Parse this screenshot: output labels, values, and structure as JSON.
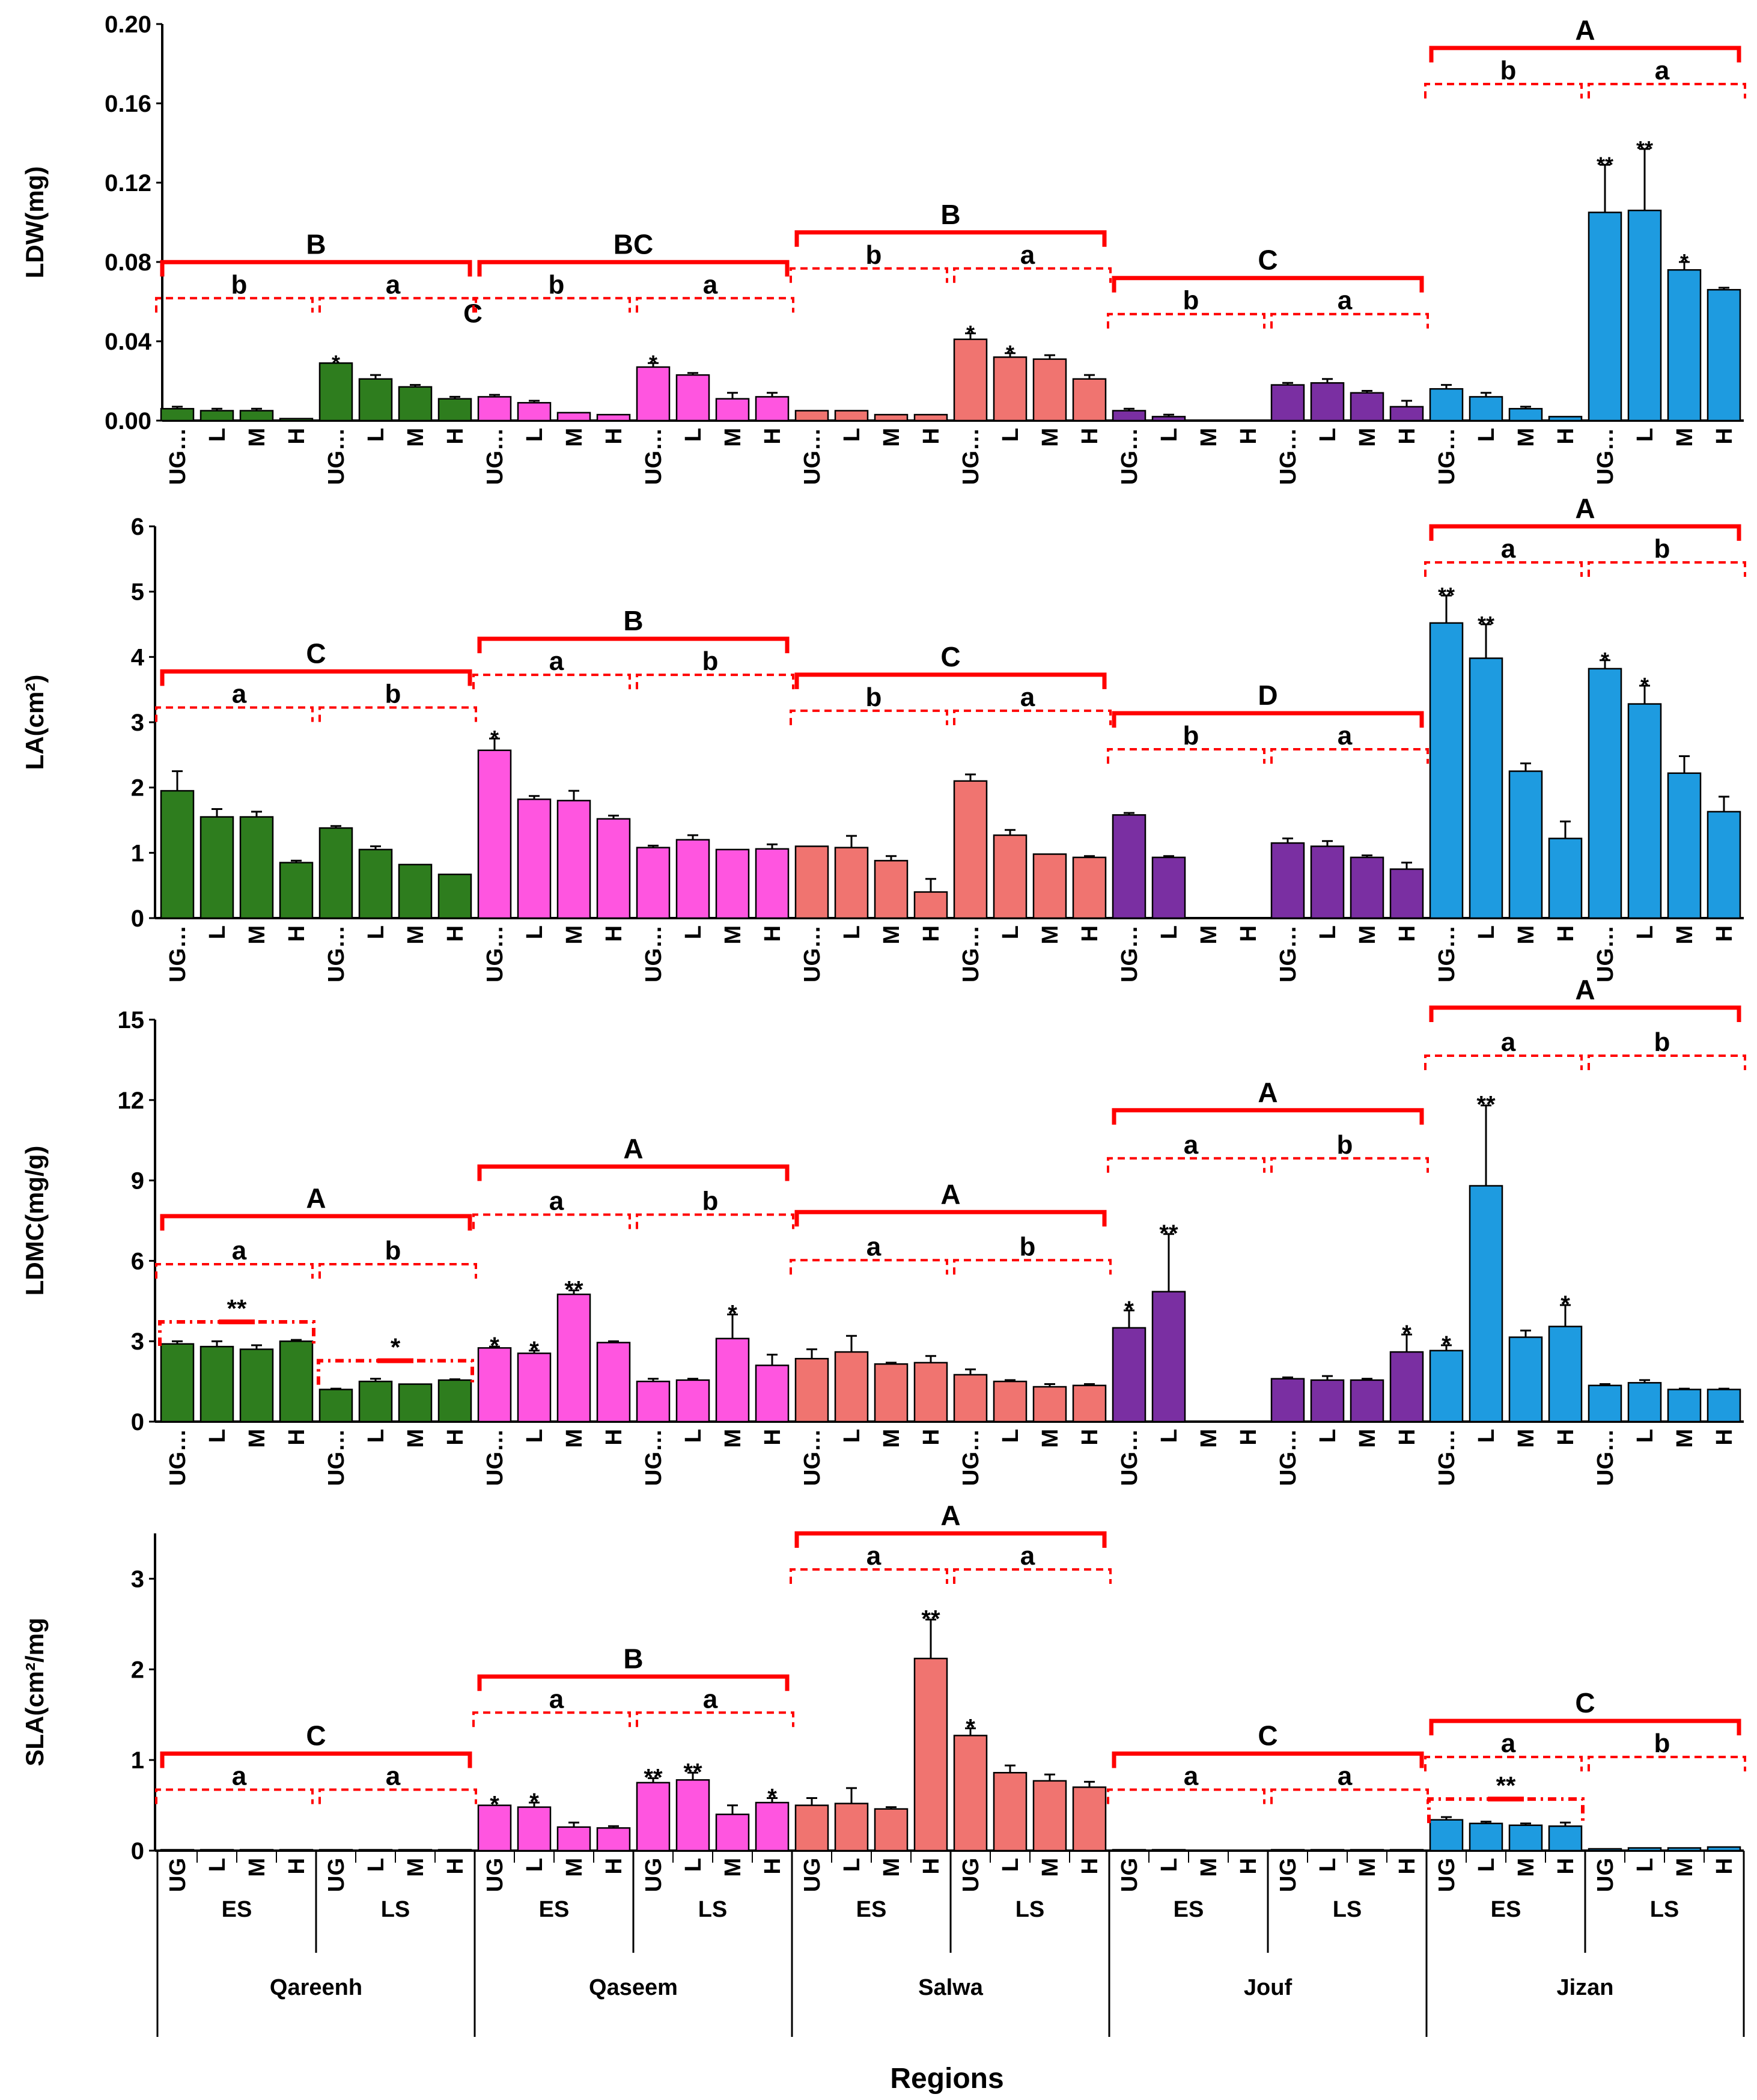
{
  "colors": {
    "Qareenh": "#2e7d1e",
    "Qaseem": "#ff55e0",
    "Salwa": "#f07470",
    "Jouf": "#7a2fa2",
    "Jizan": "#1e9be0",
    "bracket": "#ff0000",
    "axis": "#000000"
  },
  "x_axis": {
    "title": "Regions",
    "regions": [
      "Qareenh",
      "Qaseem",
      "Salwa",
      "Jouf",
      "Jizan"
    ],
    "seasons": [
      "ES",
      "LS"
    ],
    "levels_full": [
      "UG",
      "L",
      "M",
      "H"
    ],
    "levels_trunc": [
      "UG…",
      "L",
      "M",
      "H"
    ]
  },
  "chart_data": [
    {
      "type": "bar",
      "ylabel": "LDW(mg)",
      "ylim": [
        0,
        0.2
      ],
      "yticks": [
        "0.00",
        "0.04",
        "0.08",
        "0.12",
        "0.16",
        "0.20"
      ],
      "values": [
        0.006,
        0.005,
        0.005,
        0.001,
        0.029,
        0.021,
        0.017,
        0.011,
        0.012,
        0.009,
        0.004,
        0.003,
        0.027,
        0.023,
        0.011,
        0.012,
        0.005,
        0.005,
        0.003,
        0.003,
        0.041,
        0.032,
        0.031,
        0.021,
        0.005,
        0.002,
        0,
        0,
        0.018,
        0.019,
        0.014,
        0.007,
        0.016,
        0.012,
        0.006,
        0.002,
        0.105,
        0.106,
        0.076,
        0.066
      ],
      "errors": [
        0.001,
        0.001,
        0.001,
        0,
        0,
        0.002,
        0.001,
        0.001,
        0.001,
        0.001,
        0,
        0,
        0.002,
        0.001,
        0.003,
        0.002,
        0,
        0,
        0,
        0,
        0.003,
        0.002,
        0.002,
        0.002,
        0.001,
        0.001,
        0,
        0,
        0.001,
        0.002,
        0.001,
        0.003,
        0.002,
        0.002,
        0.001,
        0,
        0.024,
        0.031,
        0.004,
        0.001
      ],
      "stars": {
        "4": "*",
        "12": "*",
        "20": "*",
        "21": "*",
        "36": "**",
        "37": "**",
        "38": "*"
      },
      "region_letters": [
        "B",
        "BC",
        "B",
        "C",
        "A"
      ],
      "season_letters": [
        [
          "b",
          "a"
        ],
        [
          "b",
          "a"
        ],
        [
          "b",
          "a"
        ],
        [
          "b",
          "a"
        ],
        [
          "b",
          "a"
        ]
      ],
      "extra_letters": [
        {
          "text": "C",
          "bar": 7
        }
      ]
    },
    {
      "type": "bar",
      "ylabel": "LA(cm²)",
      "ylim": [
        0,
        6
      ],
      "yticks": [
        "0",
        "1",
        "2",
        "3",
        "4",
        "5",
        "6"
      ],
      "values": [
        1.95,
        1.55,
        1.55,
        0.85,
        1.38,
        1.05,
        0.82,
        0.67,
        2.57,
        1.82,
        1.8,
        1.52,
        1.08,
        1.2,
        1.05,
        1.06,
        1.1,
        1.08,
        0.88,
        0.4,
        2.1,
        1.27,
        0.98,
        0.93,
        1.58,
        0.93,
        0,
        0,
        1.15,
        1.1,
        0.93,
        0.75,
        4.52,
        3.98,
        2.25,
        1.22,
        3.82,
        3.28,
        2.22,
        1.63
      ],
      "errors": [
        0.3,
        0.12,
        0.08,
        0.03,
        0.03,
        0.05,
        0,
        0,
        0.18,
        0.05,
        0.15,
        0.05,
        0.03,
        0.07,
        0,
        0.07,
        0,
        0.18,
        0.07,
        0.2,
        0.1,
        0.08,
        0,
        0.02,
        0.03,
        0.02,
        0,
        0,
        0.07,
        0.08,
        0.03,
        0.1,
        0.42,
        0.52,
        0.12,
        0.26,
        0.13,
        0.28,
        0.26,
        0.23
      ],
      "stars": {
        "8": "*",
        "32": "**",
        "33": "**",
        "36": "*",
        "37": "*"
      },
      "region_letters": [
        "C",
        "B",
        "C",
        "D",
        "A"
      ],
      "season_letters": [
        [
          "a",
          "b"
        ],
        [
          "a",
          "b"
        ],
        [
          "b",
          "a"
        ],
        [
          "b",
          "a"
        ],
        [
          "a",
          "b"
        ]
      ],
      "extra_letters": []
    },
    {
      "type": "bar",
      "ylabel": "LDMC(mg/g)",
      "ylim": [
        0,
        15
      ],
      "yticks": [
        "0",
        "3",
        "6",
        "9",
        "12",
        "15"
      ],
      "values": [
        2.9,
        2.8,
        2.7,
        3.0,
        1.2,
        1.5,
        1.4,
        1.55,
        2.75,
        2.55,
        4.75,
        2.95,
        1.5,
        1.55,
        3.1,
        2.1,
        2.35,
        2.6,
        2.15,
        2.2,
        1.75,
        1.5,
        1.3,
        1.35,
        3.5,
        4.85,
        0,
        0,
        1.6,
        1.55,
        1.55,
        2.6,
        2.65,
        8.8,
        3.15,
        3.55,
        1.35,
        1.45,
        1.2,
        1.2
      ],
      "errors": [
        0.1,
        0.2,
        0.15,
        0.05,
        0.03,
        0.1,
        0,
        0.03,
        0.05,
        0.1,
        0.15,
        0.05,
        0.1,
        0.05,
        0.9,
        0.4,
        0.35,
        0.6,
        0.05,
        0.25,
        0.2,
        0.05,
        0.1,
        0.05,
        0.65,
        2.15,
        0,
        0,
        0.05,
        0.15,
        0.05,
        0.65,
        0.2,
        3.0,
        0.25,
        0.8,
        0.05,
        0.1,
        0.03,
        0.03
      ],
      "stars": {
        "8": "*",
        "9": "*",
        "10": "**",
        "14": "*",
        "24": "*",
        "25": "**",
        "31": "*",
        "32": "*",
        "33": "**",
        "35": "*"
      },
      "region_letters": [
        "A",
        "A",
        "A",
        "A",
        "A"
      ],
      "season_letters": [
        [
          "a",
          "b"
        ],
        [
          "a",
          "b"
        ],
        [
          "a",
          "b"
        ],
        [
          "a",
          "b"
        ],
        [
          "a",
          "b"
        ]
      ],
      "extra_letters": [],
      "sub_brackets": [
        {
          "region": 0,
          "season": 0,
          "text": "**"
        },
        {
          "region": 0,
          "season": 1,
          "text": "*"
        }
      ]
    },
    {
      "type": "bar",
      "ylabel": "SLA(cm²/mg",
      "ylim": [
        0,
        3.5
      ],
      "yticks": [
        "0",
        "1",
        "2",
        "3"
      ],
      "values": [
        0.01,
        0.01,
        0.01,
        0.01,
        0.01,
        0.01,
        0.01,
        0.01,
        0.5,
        0.48,
        0.26,
        0.25,
        0.75,
        0.78,
        0.4,
        0.53,
        0.5,
        0.52,
        0.46,
        2.12,
        1.27,
        0.86,
        0.77,
        0.7,
        0.01,
        0.01,
        0,
        0,
        0.01,
        0.01,
        0.01,
        0.01,
        0.34,
        0.3,
        0.28,
        0.27,
        0.02,
        0.03,
        0.03,
        0.04
      ],
      "errors": [
        0,
        0,
        0,
        0,
        0,
        0,
        0,
        0,
        0,
        0.05,
        0.05,
        0.02,
        0.05,
        0.08,
        0.1,
        0.05,
        0.08,
        0.17,
        0.02,
        0.43,
        0.08,
        0.08,
        0.07,
        0.06,
        0,
        0,
        0,
        0,
        0,
        0,
        0,
        0,
        0.03,
        0.02,
        0.02,
        0.04,
        0,
        0,
        0,
        0
      ],
      "stars": {
        "8": "*",
        "9": "*",
        "12": "**",
        "13": "**",
        "15": "*",
        "19": "**",
        "20": "*"
      },
      "region_letters": [
        "C",
        "B",
        "A",
        "C",
        "C"
      ],
      "season_letters": [
        [
          "a",
          "a"
        ],
        [
          "a",
          "a"
        ],
        [
          "a",
          "a"
        ],
        [
          "a",
          "a"
        ],
        [
          "a",
          "b"
        ]
      ],
      "extra_letters": [],
      "sub_brackets": [
        {
          "region": 4,
          "season": 0,
          "text": "**"
        }
      ]
    }
  ]
}
